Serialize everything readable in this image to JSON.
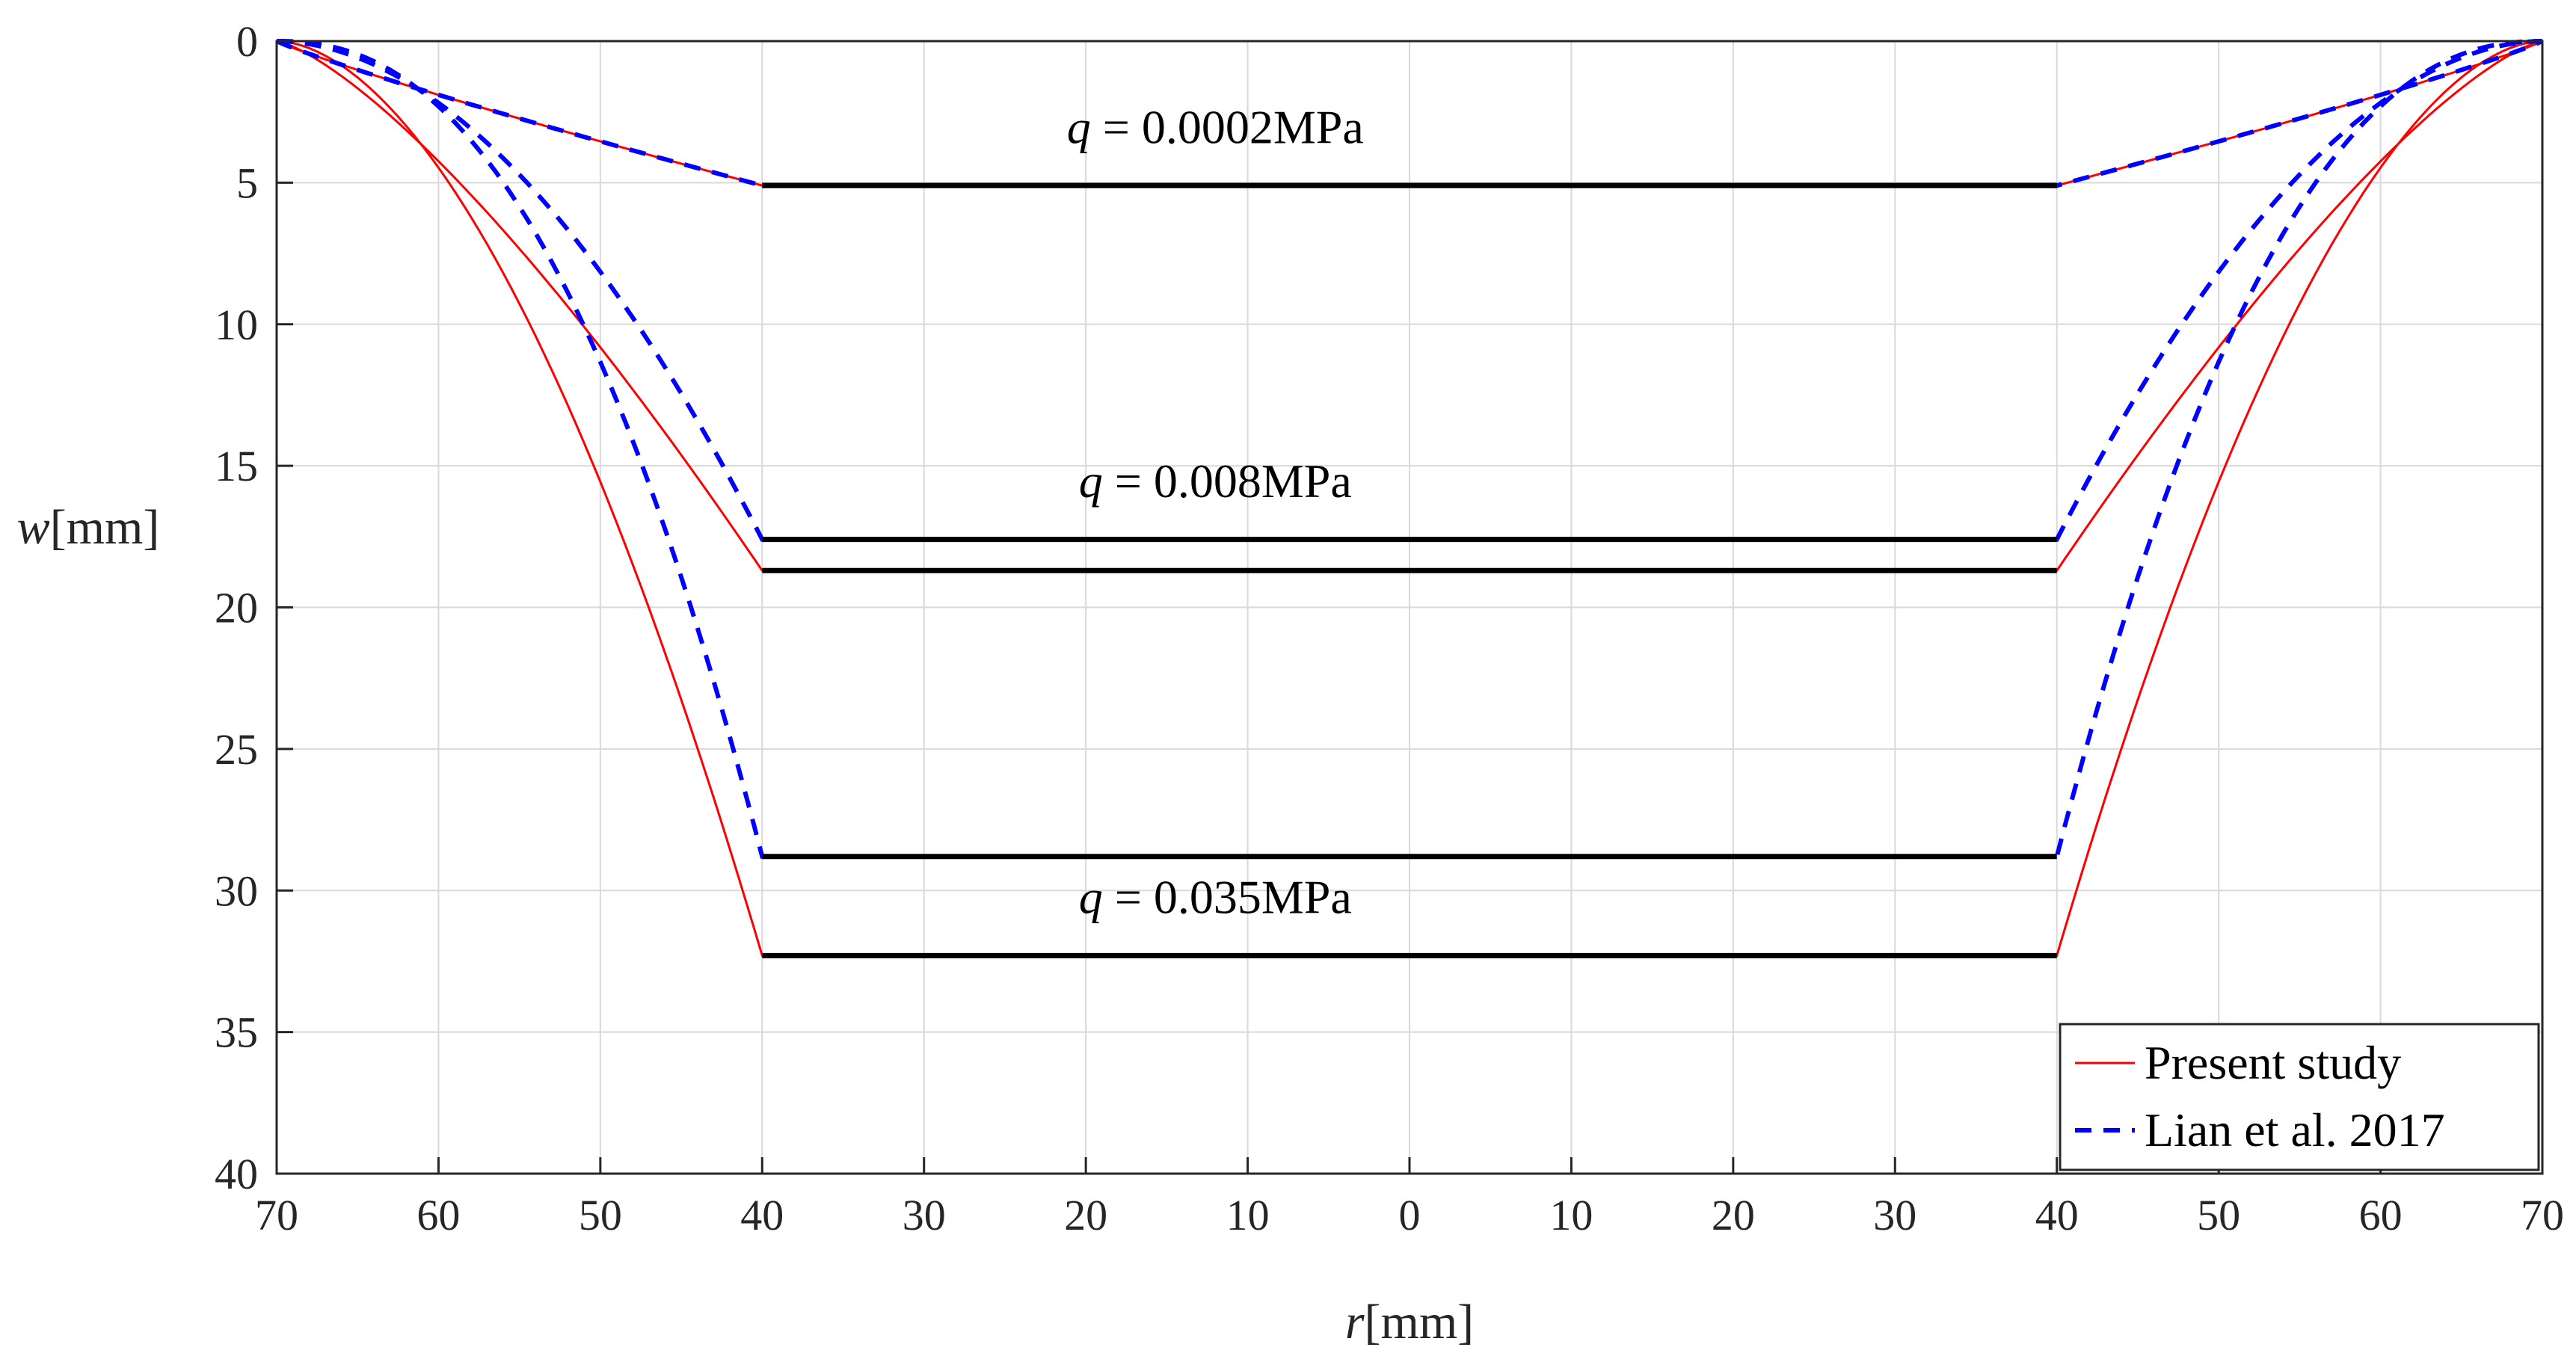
{
  "chart_data": {
    "type": "line",
    "xlabel": {
      "var": "r",
      "unit": "[mm]"
    },
    "ylabel": {
      "var": "w",
      "unit": "[mm]"
    },
    "xlim": [
      -70,
      70
    ],
    "ylim": [
      0,
      40
    ],
    "y_reversed": true,
    "grid": true,
    "x_ticks": [
      {
        "value": -70,
        "label": "70"
      },
      {
        "value": -60,
        "label": "60"
      },
      {
        "value": -50,
        "label": "50"
      },
      {
        "value": -40,
        "label": "40"
      },
      {
        "value": -30,
        "label": "30"
      },
      {
        "value": -20,
        "label": "20"
      },
      {
        "value": -10,
        "label": "10"
      },
      {
        "value": 0,
        "label": "0"
      },
      {
        "value": 10,
        "label": "10"
      },
      {
        "value": 20,
        "label": "20"
      },
      {
        "value": 30,
        "label": "30"
      },
      {
        "value": 40,
        "label": "40"
      },
      {
        "value": 50,
        "label": "50"
      },
      {
        "value": 60,
        "label": "60"
      },
      {
        "value": 70,
        "label": "70"
      }
    ],
    "y_ticks": [
      {
        "value": 0,
        "label": "0"
      },
      {
        "value": 5,
        "label": "5"
      },
      {
        "value": 10,
        "label": "10"
      },
      {
        "value": 15,
        "label": "15"
      },
      {
        "value": 20,
        "label": "20"
      },
      {
        "value": 25,
        "label": "25"
      },
      {
        "value": 30,
        "label": "30"
      },
      {
        "value": 35,
        "label": "35"
      },
      {
        "value": 40,
        "label": "40"
      }
    ],
    "legend": {
      "position": "bottom-right",
      "entries": [
        {
          "name": "Present study",
          "color": "#ff0000",
          "style": "solid"
        },
        {
          "name": "Lian et al. 2017",
          "color": "#0000ff",
          "style": "dashed"
        }
      ]
    },
    "cases": [
      {
        "q_label": "q",
        "q_value": "= 0.0002MPa",
        "label_r": -12,
        "label_w": 3.6,
        "present_w": 5.1,
        "lian_w": 5.1,
        "present_exponent": 0.9,
        "lian_exponent": 0.9
      },
      {
        "q_label": "q",
        "q_value": "= 0.008MPa",
        "label_r": -12,
        "label_w": 16.1,
        "present_w": 18.7,
        "lian_w": 17.6,
        "present_exponent": 1.35,
        "lian_exponent": 1.9
      },
      {
        "q_label": "q",
        "q_value": "= 0.035MPa",
        "label_r": -12,
        "label_w": 30.8,
        "present_w": 32.3,
        "lian_w": 28.8,
        "present_exponent": 1.8,
        "lian_exponent": 2.3
      }
    ],
    "colors": {
      "present": "#ff0000",
      "lian": "#0000ff",
      "plateau": "#000000",
      "grid": "#d9d9d9",
      "axis": "#262626"
    }
  }
}
